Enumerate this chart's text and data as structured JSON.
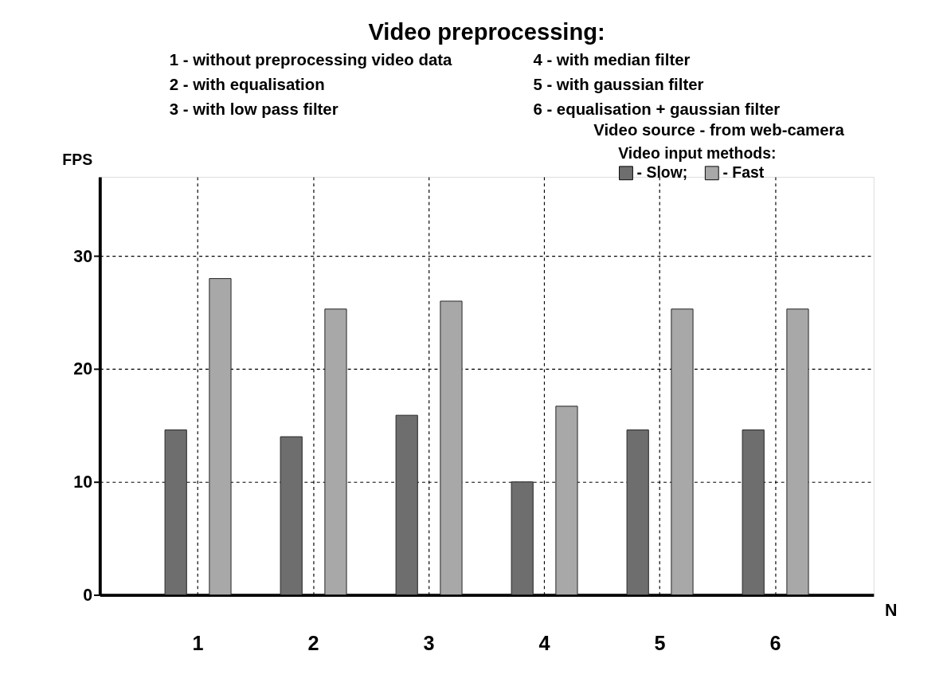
{
  "chart_data": {
    "type": "bar",
    "title": "Video preprocessing:",
    "annotations": [
      "1 - without preprocessing video data",
      "2 - with equalisation",
      "3 - with low pass filter",
      "4 - with median filter",
      "5 - with gaussian filter",
      "6 - equalisation + gaussian filter",
      "Video source - from web-camera"
    ],
    "xlabel": "N",
    "ylabel": "FPS",
    "legend_title": "Video input methods:",
    "categories": [
      "1",
      "2",
      "3",
      "4",
      "5",
      "6"
    ],
    "series": [
      {
        "name": "- Slow;",
        "color": "#6e6e6e",
        "values": [
          14.6,
          14.0,
          15.9,
          10.0,
          14.6,
          14.6
        ]
      },
      {
        "name": "- Fast",
        "color": "#a8a8a8",
        "values": [
          28.0,
          25.3,
          26.0,
          16.7,
          25.3,
          25.3
        ]
      }
    ],
    "ylim": [
      0,
      37
    ],
    "yticks": [
      0,
      10,
      20,
      30
    ],
    "grid": true,
    "legend": "top right"
  }
}
